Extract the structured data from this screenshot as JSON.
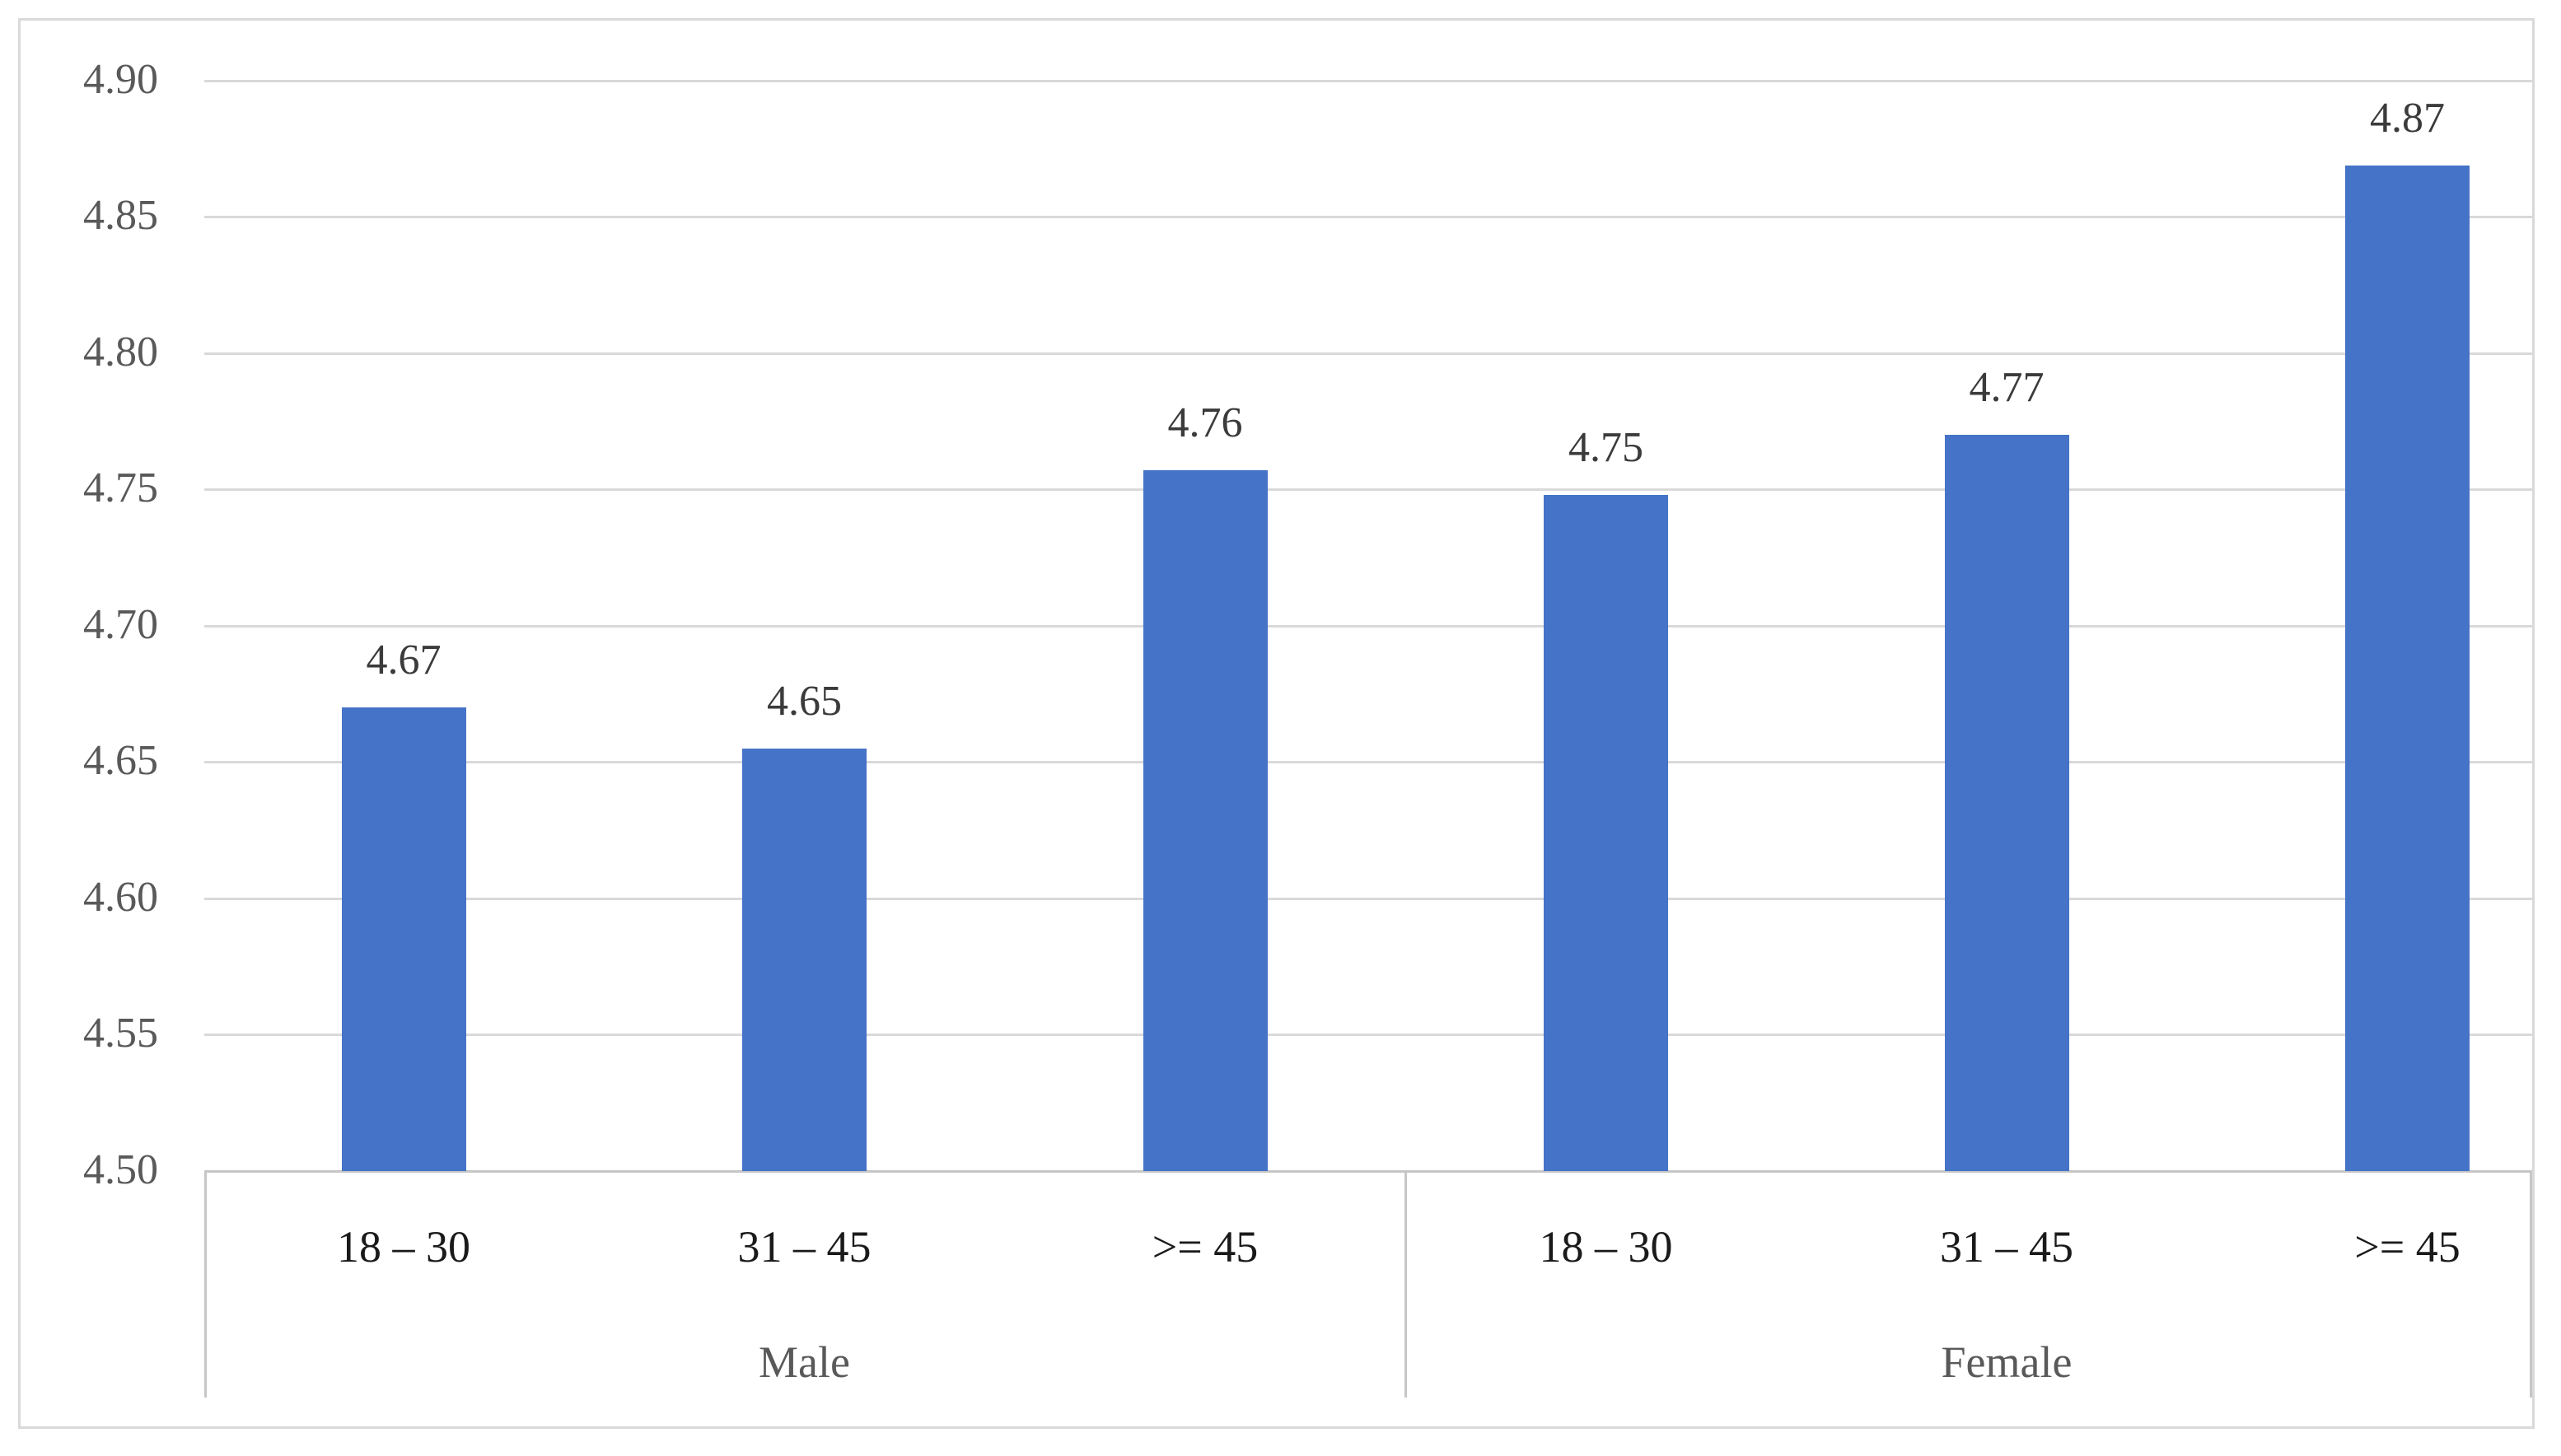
{
  "chart_data": {
    "type": "bar",
    "title": "",
    "group_labels": [
      "Male",
      "Female"
    ],
    "categories": [
      "18 – 30",
      "31 – 45",
      ">= 45",
      "18 – 30",
      "31 – 45",
      ">= 45"
    ],
    "values": [
      4.67,
      4.65,
      4.76,
      4.75,
      4.77,
      4.87
    ],
    "data_labels": [
      "4.67",
      "4.65",
      "4.76",
      "4.75",
      "4.77",
      "4.87"
    ],
    "rendered_values": [
      4.67,
      4.655,
      4.757,
      4.748,
      4.77,
      4.869
    ],
    "yticks": [
      "4.90",
      "4.85",
      "4.80",
      "4.75",
      "4.70",
      "4.65",
      "4.60",
      "4.55",
      "4.50"
    ],
    "ylim": [
      4.5,
      4.9
    ],
    "ytick_step": 0.05,
    "grid": true,
    "legend": "none",
    "bar_color": "#4573C7",
    "gridline_color": "#D9D9D9",
    "axis_line_color": "#C6C6C6",
    "border_color": "#D9D9D9",
    "ytick_color": "#595959",
    "category_color": "#1a1a1a",
    "group_label_color": "#595959",
    "data_label_color": "#3b3b3b"
  }
}
